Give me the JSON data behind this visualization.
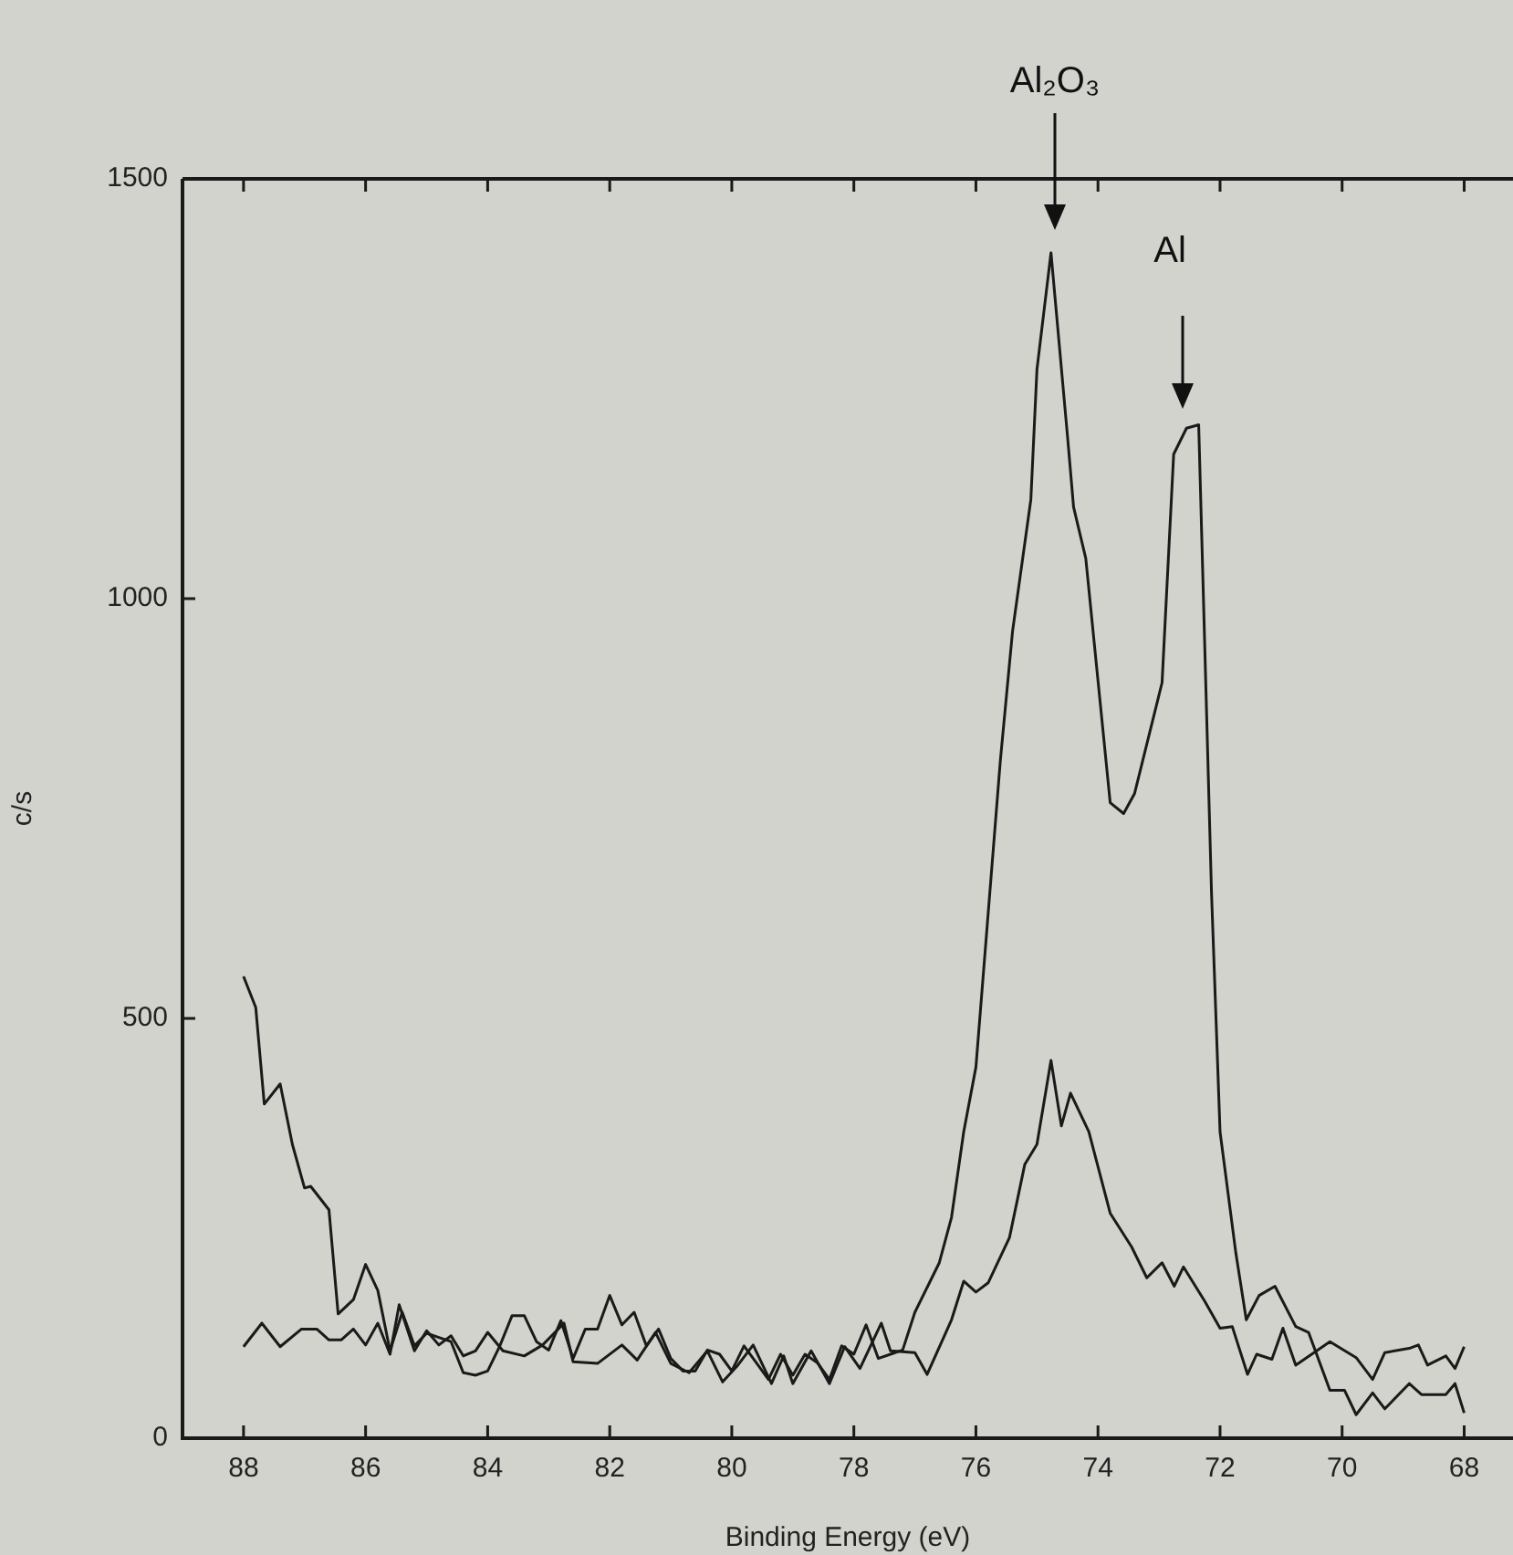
{
  "chart_data": {
    "type": "line",
    "xlabel": "Binding Energy (eV)",
    "ylabel": "c/s",
    "xlim": [
      89,
      67.2
    ],
    "ylim": [
      0,
      1500
    ],
    "xticks": [
      88,
      86,
      84,
      82,
      80,
      78,
      76,
      74,
      72,
      70,
      68
    ],
    "yticks": [
      0,
      500,
      1000,
      1500
    ],
    "grid": false,
    "legend": false,
    "marker": "none",
    "line_style": "solid",
    "series": [
      {
        "color": "#1a1a1a",
        "x": [
          88,
          87.8,
          87.66,
          87.4,
          87.2,
          87,
          86.9,
          86.6,
          86.45,
          86.2,
          86,
          85.8,
          85.6,
          85.4,
          85.2,
          85,
          84.8,
          84.6,
          84.4,
          84.2,
          84,
          83.8,
          83.6,
          83.4,
          83.2,
          83,
          82.8,
          82.6,
          82.4,
          82.2,
          82,
          81.8,
          81.6,
          81.4,
          81.2,
          81,
          80.8,
          80.6,
          80.4,
          80.2,
          80,
          79.8,
          79.6,
          79.4,
          79.2,
          79,
          78.8,
          78.6,
          78.4,
          78.2,
          78,
          77.8,
          77.6,
          77.4,
          77.2,
          77,
          76.6,
          76.4,
          76.2,
          76,
          75.6,
          75.4,
          75.1,
          75,
          74.77,
          74.5,
          74.4,
          74.2,
          73.8,
          73.58,
          73.4,
          72.95,
          72.76,
          72.55,
          72.35,
          72.14,
          72,
          71.74,
          71.57,
          71.36,
          71.1,
          70.76,
          70.55,
          70.2,
          69.96,
          69.77,
          69.5,
          69.3,
          68.9,
          68.7,
          68.3,
          68.15,
          68
        ],
        "values": [
          550,
          513,
          398,
          422,
          350,
          298,
          300,
          272,
          148,
          165,
          207,
          176,
          104,
          150,
          110,
          125,
          120,
          115,
          78,
          75,
          80,
          110,
          146,
          146,
          115,
          105,
          140,
          95,
          130,
          130,
          170,
          135,
          150,
          110,
          130,
          95,
          80,
          80,
          105,
          100,
          80,
          110,
          90,
          70,
          100,
          75,
          100,
          90,
          70,
          110,
          100,
          135,
          95,
          100,
          105,
          150,
          209,
          263,
          365,
          442,
          807,
          961,
          1118,
          1273,
          1412,
          1194,
          1109,
          1048,
          757,
          744,
          768,
          900,
          1172,
          1203,
          1207,
          650,
          365,
          220,
          141,
          170,
          181,
          133,
          126,
          57,
          57,
          28,
          54,
          35,
          65,
          52,
          52,
          65,
          30
        ]
      },
      {
        "color": "#1a1a1a",
        "x": [
          88,
          87.7,
          87.4,
          87.05,
          86.8,
          86.6,
          86.4,
          86.2,
          86,
          85.8,
          85.6,
          85.45,
          85.2,
          85,
          84.8,
          84.6,
          84.4,
          84.2,
          84,
          83.75,
          83.4,
          83.1,
          82.75,
          82.6,
          82.2,
          81.8,
          81.55,
          81.25,
          81,
          80.7,
          80.4,
          80.15,
          79.9,
          79.65,
          79.35,
          79.15,
          79,
          78.7,
          78.4,
          78.15,
          77.9,
          77.55,
          77.4,
          77,
          76.8,
          76.4,
          76.2,
          76,
          75.8,
          75.45,
          75.2,
          75,
          74.77,
          74.6,
          74.45,
          74.15,
          73.8,
          73.45,
          73.2,
          72.95,
          72.75,
          72.6,
          72.25,
          72,
          71.8,
          71.55,
          71.4,
          71.15,
          70.97,
          70.76,
          70.2,
          69.77,
          69.5,
          69.3,
          68.9,
          68.75,
          68.6,
          68.3,
          68.15,
          68
        ],
        "values": [
          109,
          137,
          109,
          130,
          130,
          117,
          117,
          130,
          111,
          137,
          100,
          159,
          104,
          128,
          111,
          122,
          98,
          104,
          126,
          104,
          98,
          111,
          137,
          91,
          89,
          111,
          93,
          126,
          89,
          78,
          104,
          67,
          87,
          111,
          65,
          98,
          65,
          104,
          65,
          109,
          83,
          137,
          104,
          102,
          76,
          141,
          187,
          174,
          185,
          239,
          326,
          350,
          450,
          372,
          411,
          365,
          268,
          228,
          191,
          209,
          181,
          204,
          163,
          131,
          133,
          76,
          100,
          94,
          131,
          87,
          115,
          96,
          70,
          102,
          107,
          111,
          87,
          98,
          83,
          109
        ]
      }
    ],
    "annotations": [
      "Al₂O₃",
      "Al"
    ]
  }
}
